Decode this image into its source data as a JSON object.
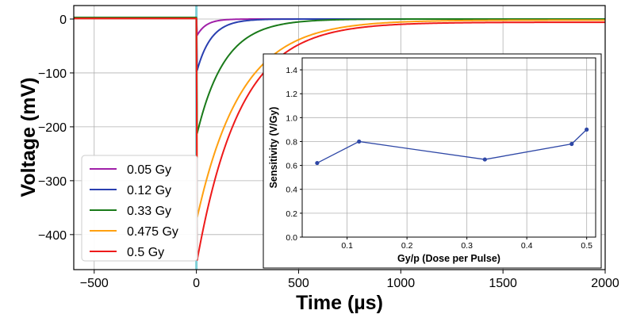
{
  "chart_data": [
    {
      "type": "line",
      "xlabel": "Time (µs)",
      "ylabel": "Voltage (mV)",
      "xlim": [
        -600,
        2000
      ],
      "ylim": [
        -465,
        25
      ],
      "xticks": [
        -500,
        0,
        500,
        1000,
        1500,
        2000
      ],
      "yticks": [
        0,
        -100,
        -200,
        -300,
        -400
      ],
      "xtick_labels": [
        "−500",
        "0",
        "500",
        "1000",
        "1500",
        "2000"
      ],
      "ytick_labels": [
        "0",
        "−100",
        "−200",
        "−300",
        "−400"
      ],
      "grid": true,
      "legend_position": "lower-left",
      "pulse_marker_x": 0,
      "pulse_marker_color": "#7fd0d8",
      "series": [
        {
          "name": "0.05 Gy",
          "color": "#a020a8",
          "baseline": 1,
          "peak": -30,
          "tau": 45,
          "offset": 0
        },
        {
          "name": "0.12 Gy",
          "color": "#2a3fb0",
          "baseline": 1,
          "peak": -95,
          "tau": 70,
          "offset": 0
        },
        {
          "name": "0.33 Gy",
          "color": "#1a7a1a",
          "baseline": 3,
          "peak": -212,
          "tau": 135,
          "offset": 0
        },
        {
          "name": "0.475 Gy",
          "color": "#ffa010",
          "baseline": 1,
          "peak": -368,
          "tau": 215,
          "offset": -2
        },
        {
          "name": "0.5 Gy",
          "color": "#ee1a1a",
          "baseline": 1,
          "peak": -447,
          "tau": 210,
          "offset": -6
        }
      ]
    },
    {
      "type": "line",
      "xlabel": "Gy/p (Dose per Pulse)",
      "ylabel": "Sensitivity (V/Gy)",
      "xlim": [
        0.025,
        0.515
      ],
      "ylim": [
        0,
        1.5
      ],
      "xticks": [
        0.1,
        0.2,
        0.3,
        0.4,
        0.5
      ],
      "yticks": [
        0.0,
        0.2,
        0.4,
        0.6,
        0.8,
        1.0,
        1.2,
        1.4
      ],
      "xtick_labels": [
        "0.1",
        "0.2",
        "0.3",
        "0.4",
        "0.5"
      ],
      "ytick_labels": [
        "0.0",
        "0.2",
        "0.4",
        "0.6",
        "0.8",
        "1.0",
        "1.2",
        "1.4"
      ],
      "grid": true,
      "marker": "circle",
      "series": [
        {
          "color": "#2e47a6",
          "x": [
            0.05,
            0.12,
            0.33,
            0.475,
            0.5
          ],
          "y": [
            0.62,
            0.8,
            0.65,
            0.78,
            0.9
          ]
        }
      ]
    }
  ]
}
